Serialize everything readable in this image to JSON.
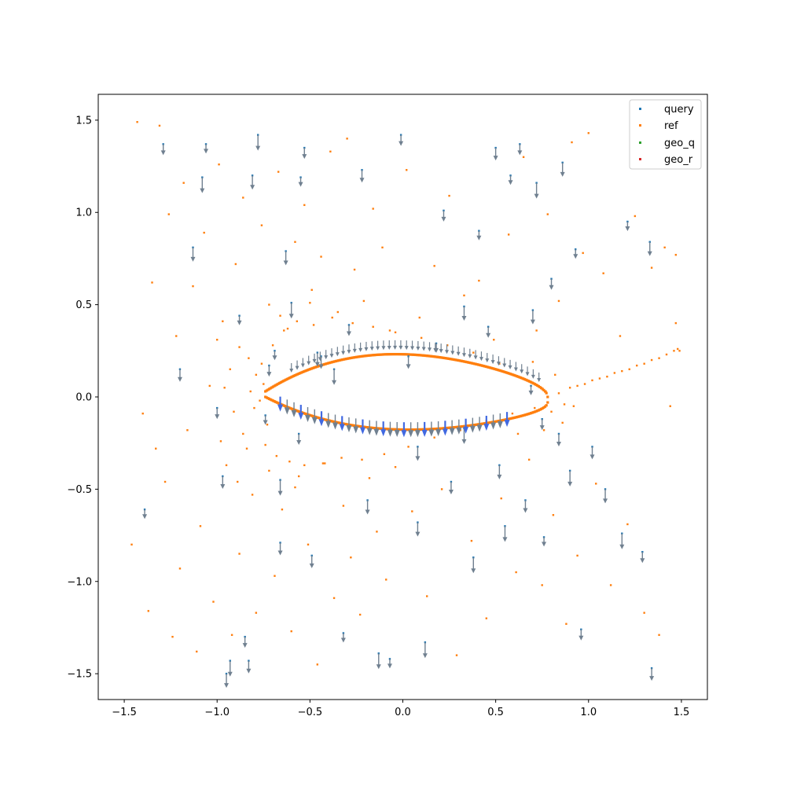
{
  "chart_data": {
    "type": "scatter",
    "title": "",
    "xlabel": "",
    "ylabel": "",
    "xlim": [
      -1.64,
      1.64
    ],
    "ylim": [
      -1.64,
      1.64
    ],
    "xticks": [
      -1.5,
      -1.0,
      -0.5,
      0.0,
      0.5,
      1.0,
      1.5
    ],
    "xtick_labels": [
      "−1.5",
      "−1.0",
      "−0.5",
      "0.0",
      "0.5",
      "1.0",
      "1.5"
    ],
    "yticks": [
      -1.5,
      -1.0,
      -0.5,
      0.0,
      0.5,
      1.0,
      1.5
    ],
    "ytick_labels": [
      "−1.5",
      "−1.0",
      "−0.5",
      "0.0",
      "0.5",
      "1.0",
      "1.5"
    ],
    "grid": false,
    "legend_position": "top-right",
    "series": [
      {
        "name": "query",
        "color": "#1f77b4",
        "points": [
          [
            -1.39,
            -0.61
          ],
          [
            -1.29,
            1.37
          ],
          [
            -1.2,
            0.15
          ],
          [
            -1.13,
            0.81
          ],
          [
            -1.08,
            1.19
          ],
          [
            -1.06,
            1.37
          ],
          [
            -1.0,
            -0.06
          ],
          [
            -0.97,
            -0.43
          ],
          [
            -0.95,
            -1.5
          ],
          [
            -0.93,
            -1.43
          ],
          [
            -0.88,
            0.44
          ],
          [
            -0.85,
            -1.3
          ],
          [
            -0.83,
            -1.43
          ],
          [
            -0.81,
            1.2
          ],
          [
            -0.78,
            1.42
          ],
          [
            -0.74,
            -0.1
          ],
          [
            -0.72,
            0.17
          ],
          [
            -0.66,
            -0.79
          ],
          [
            -0.63,
            0.79
          ],
          [
            -0.6,
            0.51
          ],
          [
            -0.55,
            1.19
          ],
          [
            -0.53,
            1.35
          ],
          [
            -0.49,
            -0.86
          ],
          [
            -0.46,
            0.24
          ],
          [
            -0.37,
            0.15
          ],
          [
            -0.32,
            -1.28
          ],
          [
            -0.29,
            0.39
          ],
          [
            -0.22,
            1.23
          ],
          [
            -0.19,
            -0.56
          ],
          [
            -0.13,
            -1.39
          ],
          [
            -0.07,
            -1.42
          ],
          [
            -0.01,
            1.42
          ],
          [
            0.03,
            0.22
          ],
          [
            0.08,
            -0.68
          ],
          [
            0.12,
            -1.33
          ],
          [
            0.18,
            0.29
          ],
          [
            0.22,
            1.01
          ],
          [
            0.26,
            -0.46
          ],
          [
            0.33,
            0.49
          ],
          [
            0.38,
            -0.87
          ],
          [
            0.41,
            0.9
          ],
          [
            0.46,
            0.38
          ],
          [
            0.5,
            1.35
          ],
          [
            0.52,
            -0.37
          ],
          [
            0.55,
            -0.7
          ],
          [
            0.58,
            1.2
          ],
          [
            0.63,
            1.37
          ],
          [
            0.66,
            -0.56
          ],
          [
            0.7,
            0.47
          ],
          [
            0.72,
            1.16
          ],
          [
            0.76,
            -0.76
          ],
          [
            0.8,
            0.64
          ],
          [
            0.84,
            -0.2
          ],
          [
            0.86,
            1.27
          ],
          [
            0.9,
            -0.4
          ],
          [
            0.93,
            0.8
          ],
          [
            0.96,
            -1.26
          ],
          [
            1.02,
            -0.27
          ],
          [
            1.09,
            -0.5
          ],
          [
            1.18,
            -0.74
          ],
          [
            1.21,
            0.95
          ],
          [
            1.29,
            -0.84
          ],
          [
            1.34,
            -1.47
          ],
          [
            1.33,
            0.84
          ],
          [
            -0.66,
            -0.45
          ],
          [
            -0.69,
            0.25
          ],
          [
            -0.56,
            -0.2
          ],
          [
            -0.44,
            0.22
          ],
          [
            0.08,
            -0.27
          ],
          [
            0.33,
            -0.17
          ],
          [
            0.69,
            0.06
          ],
          [
            0.75,
            -0.12
          ]
        ]
      },
      {
        "name": "ref",
        "color": "#ff7f0e",
        "points": [
          [
            -1.46,
            -0.8
          ],
          [
            -1.43,
            1.49
          ],
          [
            -1.4,
            -0.09
          ],
          [
            -1.37,
            -1.16
          ],
          [
            -1.35,
            0.62
          ],
          [
            -1.33,
            -0.28
          ],
          [
            -1.31,
            1.47
          ],
          [
            -1.28,
            -0.46
          ],
          [
            -1.26,
            0.99
          ],
          [
            -1.24,
            -1.3
          ],
          [
            -1.22,
            0.33
          ],
          [
            -1.2,
            -0.93
          ],
          [
            -1.18,
            1.16
          ],
          [
            -1.16,
            -0.18
          ],
          [
            -1.13,
            0.6
          ],
          [
            -1.11,
            -1.38
          ],
          [
            -1.09,
            -0.7
          ],
          [
            -1.07,
            0.89
          ],
          [
            -1.04,
            0.06
          ],
          [
            -1.02,
            -1.11
          ],
          [
            -0.99,
            1.26
          ],
          [
            -0.97,
            0.41
          ],
          [
            -0.95,
            -0.37
          ],
          [
            -0.92,
            -1.29
          ],
          [
            -0.9,
            0.72
          ],
          [
            -0.88,
            -0.85
          ],
          [
            -0.86,
            1.08
          ],
          [
            -0.83,
            0.21
          ],
          [
            -0.81,
            -0.53
          ],
          [
            -0.79,
            -1.17
          ],
          [
            -0.76,
            0.93
          ],
          [
            -0.74,
            -0.26
          ],
          [
            -0.72,
            0.5
          ],
          [
            -0.69,
            -0.97
          ],
          [
            -0.67,
            1.22
          ],
          [
            -0.65,
            -0.61
          ],
          [
            -0.62,
            0.37
          ],
          [
            -0.6,
            -1.27
          ],
          [
            -0.58,
            0.84
          ],
          [
            -0.56,
            -0.43
          ],
          [
            -0.53,
            1.04
          ],
          [
            -0.51,
            -0.8
          ],
          [
            -0.49,
            0.58
          ],
          [
            -0.46,
            -1.45
          ],
          [
            -0.44,
            0.76
          ],
          [
            -0.42,
            -0.36
          ],
          [
            -0.39,
            1.33
          ],
          [
            -0.37,
            -1.09
          ],
          [
            -0.35,
            0.46
          ],
          [
            -0.32,
            -0.59
          ],
          [
            -0.3,
            1.4
          ],
          [
            -0.28,
            -0.87
          ],
          [
            -0.26,
            0.69
          ],
          [
            -0.23,
            -1.18
          ],
          [
            -0.21,
            0.52
          ],
          [
            -0.18,
            -0.44
          ],
          [
            -0.16,
            1.02
          ],
          [
            -0.14,
            -0.73
          ],
          [
            -0.11,
            0.81
          ],
          [
            -0.09,
            -0.99
          ],
          [
            -0.07,
            0.36
          ],
          [
            -0.04,
            -0.38
          ],
          [
            0.02,
            1.23
          ],
          [
            0.05,
            -0.62
          ],
          [
            0.09,
            0.43
          ],
          [
            0.13,
            -1.08
          ],
          [
            0.17,
            0.71
          ],
          [
            0.21,
            -0.5
          ],
          [
            0.25,
            1.09
          ],
          [
            0.29,
            -1.4
          ],
          [
            0.33,
            0.55
          ],
          [
            0.37,
            -0.78
          ],
          [
            0.41,
            0.63
          ],
          [
            0.45,
            -1.2
          ],
          [
            0.49,
            0.31
          ],
          [
            0.53,
            -0.55
          ],
          [
            0.57,
            0.88
          ],
          [
            0.61,
            -0.95
          ],
          [
            0.65,
            1.3
          ],
          [
            0.68,
            -0.34
          ],
          [
            0.72,
            0.36
          ],
          [
            0.75,
            -1.02
          ],
          [
            0.78,
            0.99
          ],
          [
            0.81,
            -0.64
          ],
          [
            0.84,
            0.52
          ],
          [
            0.88,
            -1.23
          ],
          [
            0.91,
            1.38
          ],
          [
            0.94,
            -0.86
          ],
          [
            0.97,
            0.78
          ],
          [
            1.0,
            1.43
          ],
          [
            1.04,
            -0.47
          ],
          [
            1.08,
            0.67
          ],
          [
            1.12,
            -1.02
          ],
          [
            1.17,
            0.33
          ],
          [
            1.21,
            -0.69
          ],
          [
            1.25,
            0.98
          ],
          [
            1.3,
            -1.17
          ],
          [
            1.34,
            0.7
          ],
          [
            1.38,
            -1.29
          ],
          [
            1.41,
            0.81
          ],
          [
            1.44,
            -0.05
          ],
          [
            1.47,
            0.4
          ],
          [
            1.49,
            0.25
          ],
          [
            1.47,
            0.77
          ],
          [
            -0.79,
            0.12
          ],
          [
            -0.77,
            -0.02
          ],
          [
            -0.75,
            0.07
          ],
          [
            -0.73,
            -0.15
          ],
          [
            -0.8,
            -0.06
          ],
          [
            -0.76,
            0.18
          ],
          [
            -0.82,
            0.03
          ],
          [
            -0.7,
            0.28
          ],
          [
            -0.68,
            -0.32
          ],
          [
            -0.64,
            0.36
          ],
          [
            -0.61,
            -0.35
          ],
          [
            -0.57,
            0.41
          ],
          [
            -0.53,
            -0.37
          ],
          [
            -0.48,
            0.39
          ],
          [
            -0.43,
            -0.36
          ],
          [
            -0.38,
            0.43
          ],
          [
            -0.33,
            -0.33
          ],
          [
            -0.27,
            0.4
          ],
          [
            -0.22,
            -0.34
          ],
          [
            -0.16,
            0.38
          ],
          [
            -0.1,
            -0.31
          ],
          [
            -0.04,
            0.35
          ],
          [
            0.03,
            -0.27
          ],
          [
            0.1,
            0.32
          ],
          [
            0.17,
            -0.22
          ],
          [
            0.24,
            0.28
          ],
          [
            0.31,
            -0.18
          ],
          [
            0.38,
            0.24
          ],
          [
            0.45,
            -0.13
          ],
          [
            0.52,
            0.18
          ],
          [
            0.59,
            -0.09
          ],
          [
            0.65,
            0.1
          ],
          [
            0.71,
            -0.06
          ],
          [
            0.77,
            0.03
          ],
          [
            0.8,
            -0.08
          ],
          [
            0.84,
            0.02
          ],
          [
            0.87,
            -0.04
          ],
          [
            0.9,
            0.05
          ],
          [
            0.94,
            0.06
          ],
          [
            0.98,
            0.07
          ],
          [
            1.02,
            0.09
          ],
          [
            1.06,
            0.1
          ],
          [
            1.1,
            0.11
          ],
          [
            1.14,
            0.13
          ],
          [
            1.18,
            0.14
          ],
          [
            1.22,
            0.15
          ],
          [
            1.26,
            0.17
          ],
          [
            1.3,
            0.18
          ],
          [
            1.34,
            0.2
          ],
          [
            1.38,
            0.21
          ],
          [
            1.42,
            0.23
          ],
          [
            1.46,
            0.25
          ],
          [
            1.48,
            0.26
          ],
          [
            -0.86,
            -0.2
          ],
          [
            -0.88,
            0.27
          ],
          [
            -0.91,
            -0.08
          ],
          [
            -0.84,
            -0.28
          ],
          [
            -0.93,
            0.15
          ],
          [
            -0.72,
            -0.4
          ],
          [
            -0.66,
            0.44
          ],
          [
            -0.58,
            -0.49
          ],
          [
            -0.5,
            0.51
          ],
          [
            0.62,
            -0.2
          ],
          [
            0.7,
            0.19
          ],
          [
            0.76,
            -0.18
          ],
          [
            0.82,
            0.12
          ],
          [
            0.86,
            -0.14
          ],
          [
            0.92,
            -0.05
          ],
          [
            -0.96,
            0.05
          ],
          [
            -0.98,
            -0.24
          ],
          [
            -1.0,
            0.31
          ],
          [
            -0.89,
            -0.46
          ]
        ]
      },
      {
        "name": "geo_q",
        "color": "#2ca02c",
        "points": []
      },
      {
        "name": "geo_r",
        "color": "#d62728",
        "points": []
      }
    ],
    "airfoil_outline_color": "#ff7f0e",
    "vector_arrow_color": "#708090",
    "vector_arrow_highlight_color": "#4169e1"
  }
}
